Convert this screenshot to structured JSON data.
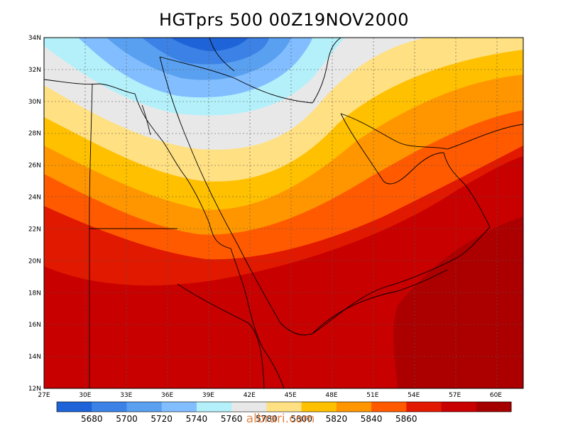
{
  "title": "HGTprs 500 00Z19NOV2000",
  "watermark": "albrari.com",
  "map": {
    "lon_range": [
      27,
      62
    ],
    "lat_range": [
      12,
      34
    ],
    "lon_ticks": [
      "27E",
      "30E",
      "33E",
      "36E",
      "39E",
      "42E",
      "45E",
      "48E",
      "51E",
      "54E",
      "57E",
      "60E"
    ],
    "lat_ticks": [
      "12N",
      "14N",
      "16N",
      "18N",
      "20N",
      "22N",
      "24N",
      "26N",
      "28N",
      "30N",
      "32N",
      "34N"
    ]
  },
  "colorbar": {
    "colors": [
      "#1e64d8",
      "#3c82e6",
      "#5aa0f0",
      "#82beff",
      "#b4f0fa",
      "#e8e8e8",
      "#ffe082",
      "#ffc000",
      "#ff9600",
      "#ff5a00",
      "#e11900",
      "#c80000",
      "#a50000"
    ],
    "labels": [
      "5680",
      "5700",
      "5720",
      "5740",
      "5760",
      "5780",
      "5800",
      "5820",
      "5840",
      "5860"
    ]
  }
}
